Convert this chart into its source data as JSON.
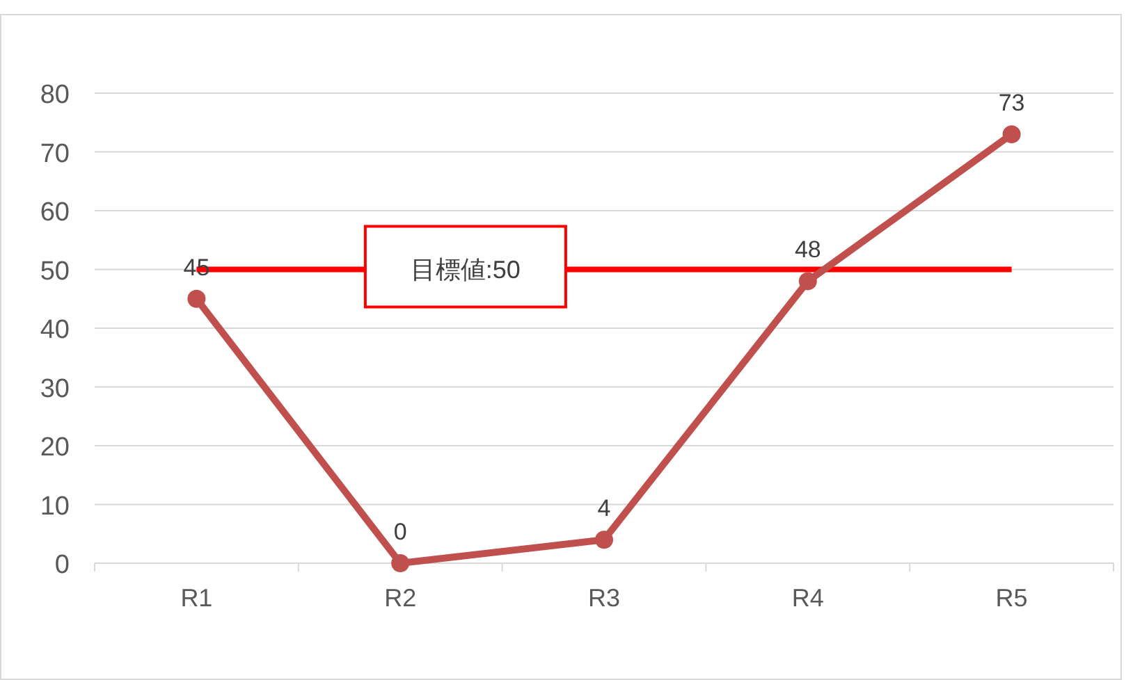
{
  "chart_data": {
    "type": "line",
    "categories": [
      "R1",
      "R2",
      "R3",
      "R4",
      "R5"
    ],
    "series": [
      {
        "color": "#c0504d",
        "values": [
          45,
          0,
          4,
          48,
          73
        ]
      }
    ],
    "ylim": [
      0,
      80
    ],
    "yticks": [
      0,
      10,
      20,
      30,
      40,
      50,
      60,
      70,
      80
    ],
    "grid": "y",
    "marker": "circle",
    "line_style": "solid",
    "data_labels": true,
    "ref_lines": [
      {
        "axis": "y",
        "value": 50,
        "label": "目標値:50",
        "color": "#ff0000"
      }
    ]
  }
}
